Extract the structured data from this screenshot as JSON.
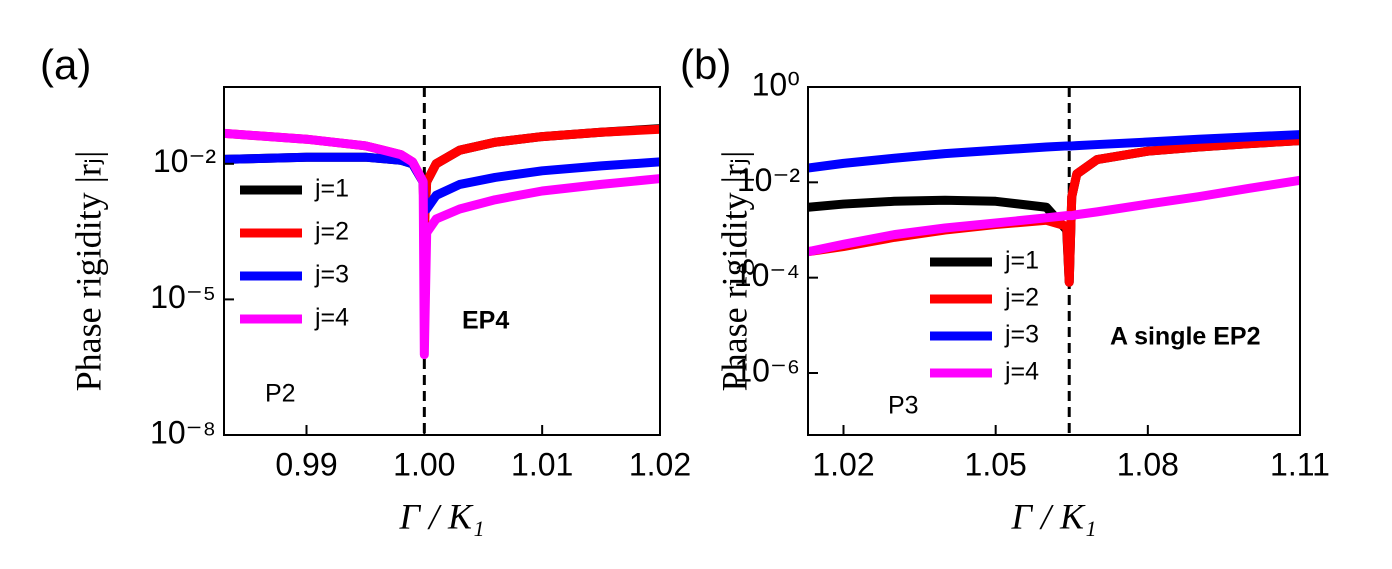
{
  "chart_data": [
    {
      "type": "line",
      "panel_label": "(a)",
      "y_label": "Phase rigidity |rⱼ|",
      "x_label": "Γ / K₁",
      "annotations": [
        "EP4",
        "P2"
      ],
      "log_y": true,
      "legend": "center left",
      "vline": 1.0,
      "xlim": [
        0.983,
        1.02
      ],
      "xticks": [
        0.99,
        {
          "value": 1.0,
          "label": "1.00"
        },
        1.01,
        1.02
      ],
      "ylim": [
        1e-08,
        0.5
      ],
      "yticks": [
        {
          "value": 1e-08,
          "label": "10⁻⁸"
        },
        {
          "value": 1e-05,
          "label": "10⁻⁵"
        },
        {
          "value": 0.01,
          "label": "10⁻²"
        }
      ],
      "x": [
        0.983,
        0.99,
        0.995,
        0.998,
        0.999,
        0.9999,
        1.0,
        1.0002,
        1.001,
        1.003,
        1.006,
        1.01,
        1.015,
        1.02
      ],
      "series": [
        {
          "name": "j=1",
          "color": "#000000",
          "values": [
            0.0125,
            0.014,
            0.014,
            0.012,
            0.01,
            0.004,
            0.0004,
            0.004,
            0.01,
            0.02,
            0.03,
            0.04,
            0.05,
            0.06
          ]
        },
        {
          "name": "j=2",
          "color": "#ff0000",
          "values": [
            0.047,
            0.035,
            0.025,
            0.016,
            0.011,
            0.004,
            0.0004,
            0.004,
            0.01,
            0.02,
            0.03,
            0.04,
            0.05,
            0.058
          ]
        },
        {
          "name": "j=3",
          "color": "#0000ff",
          "values": [
            0.0125,
            0.014,
            0.014,
            0.012,
            0.01,
            0.004,
            0.001,
            0.001,
            0.002,
            0.0035,
            0.005,
            0.007,
            0.009,
            0.011
          ]
        },
        {
          "name": "j=4",
          "color": "#ff00ff",
          "values": [
            0.047,
            0.035,
            0.025,
            0.016,
            0.011,
            0.004,
            6e-07,
            0.0003,
            0.0006,
            0.001,
            0.0016,
            0.0025,
            0.0035,
            0.0047
          ]
        }
      ]
    },
    {
      "type": "line",
      "panel_label": "(b)",
      "y_label": "Phase rigidity |rⱼ|",
      "x_label": "Γ / K₁",
      "annotations": [
        "A single EP2",
        "P3"
      ],
      "log_y": true,
      "legend": "lower left",
      "vline": 1.0645,
      "xlim": [
        1.013,
        1.11
      ],
      "xticks": [
        1.02,
        1.05,
        1.08,
        1.11
      ],
      "ylim": [
        5e-08,
        1
      ],
      "yticks": [
        {
          "value": 1e-06,
          "label": "10⁻⁶"
        },
        {
          "value": 0.0001,
          "label": "10⁻⁴"
        },
        {
          "value": 0.01,
          "label": "10⁻²"
        },
        {
          "value": 1,
          "label": "10⁰"
        }
      ],
      "x": [
        1.013,
        1.02,
        1.03,
        1.04,
        1.05,
        1.06,
        1.064,
        1.0645,
        1.065,
        1.066,
        1.07,
        1.08,
        1.09,
        1.1,
        1.11
      ],
      "series": [
        {
          "name": "j=1",
          "color": "#000000",
          "values": [
            0.003,
            0.0035,
            0.004,
            0.0042,
            0.004,
            0.003,
            0.001,
            8e-05,
            0.005,
            0.015,
            0.03,
            0.045,
            0.055,
            0.065,
            0.075
          ]
        },
        {
          "name": "j=2",
          "color": "#ff0000",
          "values": [
            0.00035,
            0.00045,
            0.0007,
            0.001,
            0.0013,
            0.0016,
            0.0012,
            8e-05,
            0.005,
            0.015,
            0.03,
            0.045,
            0.055,
            0.065,
            0.075
          ]
        },
        {
          "name": "j=3",
          "color": "#0000ff",
          "values": [
            0.02,
            0.025,
            0.032,
            0.04,
            0.047,
            0.055,
            0.058,
            0.058,
            0.058,
            0.059,
            0.062,
            0.07,
            0.08,
            0.09,
            0.1
          ]
        },
        {
          "name": "j=4",
          "color": "#ff00ff",
          "values": [
            0.00035,
            0.0005,
            0.0008,
            0.0011,
            0.0014,
            0.0018,
            0.002,
            0.002,
            0.002,
            0.0021,
            0.0024,
            0.0035,
            0.005,
            0.0075,
            0.011
          ]
        }
      ]
    }
  ]
}
